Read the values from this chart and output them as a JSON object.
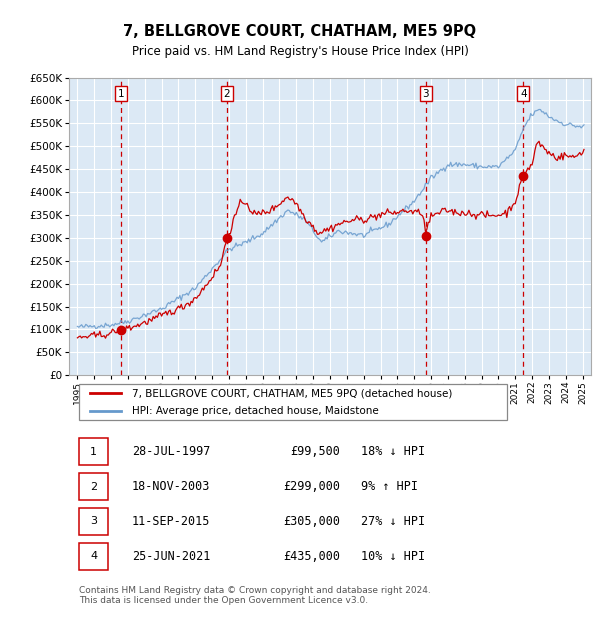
{
  "title": "7, BELLGROVE COURT, CHATHAM, ME5 9PQ",
  "subtitle": "Price paid vs. HM Land Registry's House Price Index (HPI)",
  "ylim": [
    0,
    650000
  ],
  "yticks": [
    0,
    50000,
    100000,
    150000,
    200000,
    250000,
    300000,
    350000,
    400000,
    450000,
    500000,
    550000,
    600000,
    650000
  ],
  "xlim_start": 1994.5,
  "xlim_end": 2025.5,
  "plot_bg_color": "#dce9f5",
  "grid_color": "#ffffff",
  "sale_dates": [
    1997.57,
    2003.88,
    2015.69,
    2021.48
  ],
  "sale_prices": [
    99500,
    299000,
    305000,
    435000
  ],
  "sale_labels": [
    "1",
    "2",
    "3",
    "4"
  ],
  "red_line_color": "#cc0000",
  "blue_line_color": "#6699cc",
  "dashed_line_color": "#cc0000",
  "legend_red_label": "7, BELLGROVE COURT, CHATHAM, ME5 9PQ (detached house)",
  "legend_blue_label": "HPI: Average price, detached house, Maidstone",
  "table_entries": [
    {
      "num": "1",
      "date": "28-JUL-1997",
      "price": "£99,500",
      "hpi": "18% ↓ HPI"
    },
    {
      "num": "2",
      "date": "18-NOV-2003",
      "price": "£299,000",
      "hpi": "9% ↑ HPI"
    },
    {
      "num": "3",
      "date": "11-SEP-2015",
      "price": "£305,000",
      "hpi": "27% ↓ HPI"
    },
    {
      "num": "4",
      "date": "25-JUN-2021",
      "price": "£435,000",
      "hpi": "10% ↓ HPI"
    }
  ],
  "footer": "Contains HM Land Registry data © Crown copyright and database right 2024.\nThis data is licensed under the Open Government Licence v3.0."
}
